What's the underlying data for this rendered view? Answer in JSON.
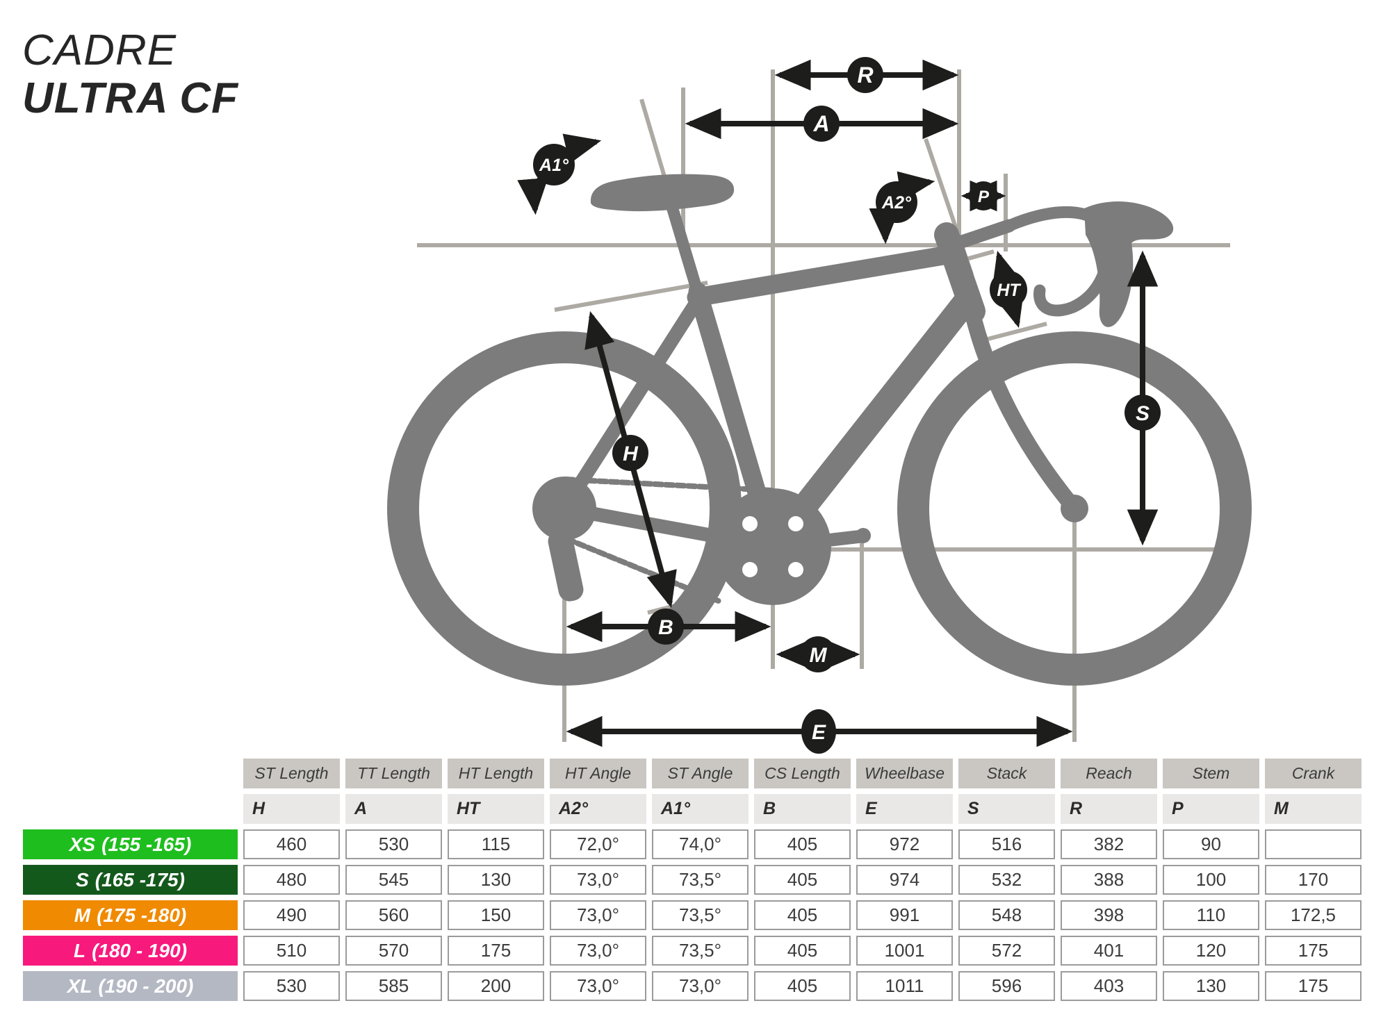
{
  "title": {
    "line1": "CADRE",
    "line2": "ULTRA CF"
  },
  "diagram": {
    "bike_color": "#7c7c7c",
    "guide_color": "#ada9a3",
    "arrow_color": "#1d1d1b",
    "labels": {
      "reach": "R",
      "top_tube": "A",
      "seat_angle": "A1°",
      "head_angle": "A2°",
      "stem": "P",
      "head_tube": "HT",
      "stack": "S",
      "seat_tube": "H",
      "chainstay": "B",
      "crank": "M",
      "wheelbase": "E"
    }
  },
  "table": {
    "columns": [
      {
        "name": "ST Length",
        "code": "H"
      },
      {
        "name": "TT Length",
        "code": "A"
      },
      {
        "name": "HT Length",
        "code": "HT"
      },
      {
        "name": "HT Angle",
        "code": "A2°"
      },
      {
        "name": "ST Angle",
        "code": "A1°"
      },
      {
        "name": "CS Length",
        "code": "B"
      },
      {
        "name": "Wheelbase",
        "code": "E"
      },
      {
        "name": "Stack",
        "code": "S"
      },
      {
        "name": "Reach",
        "code": "R"
      },
      {
        "name": "Stem",
        "code": "P"
      },
      {
        "name": "Crank",
        "code": "M"
      }
    ],
    "rows": [
      {
        "size": "XS",
        "range": "(155 -165)",
        "color": "#1fbe1f",
        "values": [
          "460",
          "530",
          "115",
          "72,0°",
          "74,0°",
          "405",
          "972",
          "516",
          "382",
          "90",
          ""
        ]
      },
      {
        "size": "S",
        "range": "(165 -175)",
        "color": "#14591c",
        "values": [
          "480",
          "545",
          "130",
          "73,0°",
          "73,5°",
          "405",
          "974",
          "532",
          "388",
          "100",
          "170"
        ]
      },
      {
        "size": "M",
        "range": "(175 -180)",
        "color": "#f08a00",
        "values": [
          "490",
          "560",
          "150",
          "73,0°",
          "73,5°",
          "405",
          "991",
          "548",
          "398",
          "110",
          "172,5"
        ]
      },
      {
        "size": "L",
        "range": "(180 - 190)",
        "color": "#f8197d",
        "values": [
          "510",
          "570",
          "175",
          "73,0°",
          "73,5°",
          "405",
          "1001",
          "572",
          "401",
          "120",
          "175"
        ]
      },
      {
        "size": "XL",
        "range": "(190 - 200)",
        "color": "#b4b8c3",
        "values": [
          "530",
          "585",
          "200",
          "73,0°",
          "73,0°",
          "405",
          "1011",
          "596",
          "403",
          "130",
          "175"
        ]
      }
    ]
  }
}
